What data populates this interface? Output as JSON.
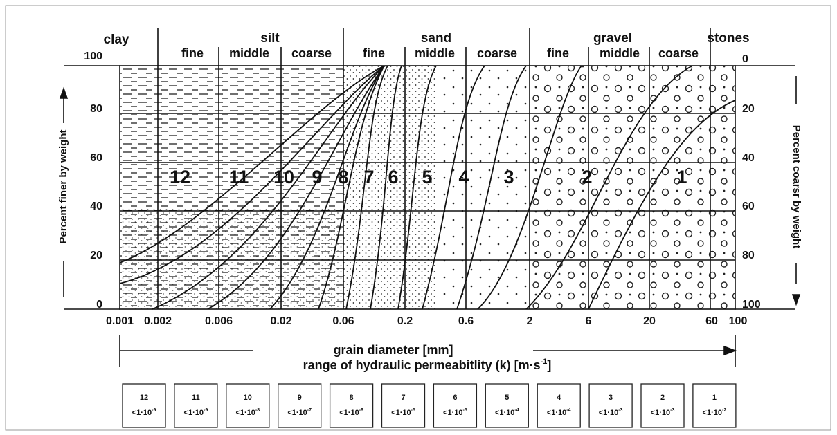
{
  "groups": [
    {
      "label": "clay",
      "x": 168
    },
    {
      "label": "silt",
      "x": 390
    },
    {
      "label": "sand",
      "x": 630
    },
    {
      "label": "gravel",
      "x": 885
    },
    {
      "label": "stones",
      "x": 1052
    }
  ],
  "subgroups": [
    "fine",
    "middle",
    "coarse",
    "fine",
    "middle",
    "coarse",
    "fine",
    "middle",
    "coarse"
  ],
  "left_ticks": [
    "100",
    "80",
    "60",
    "40",
    "20",
    "0"
  ],
  "right_ticks": [
    "0",
    "20",
    "40",
    "60",
    "80",
    "100"
  ],
  "left_axis": "Percent finer by weight",
  "right_axis": "Percent coarsr by weight",
  "x_ticks": [
    "0.001",
    "0.002",
    "0.006",
    "0.02",
    "0.06",
    "0.2",
    "0.6",
    "2",
    "6",
    "20",
    "60",
    "100"
  ],
  "zones": [
    "12",
    "11",
    "10",
    "9",
    "8",
    "7",
    "6",
    "5",
    "4",
    "3",
    "2",
    "1"
  ],
  "x_title": "grain diameter [mm]",
  "k_title": {
    "text": "range of hydraulic permeabitlity (k) [m·s",
    "sup": "-1",
    "end": "]"
  },
  "boxes": [
    {
      "zone": "12",
      "k": "<1·10",
      "exp": "-9"
    },
    {
      "zone": "11",
      "k": "<1·10",
      "exp": "-9"
    },
    {
      "zone": "10",
      "k": "<1·10",
      "exp": "-8"
    },
    {
      "zone": "9",
      "k": "<1·10",
      "exp": "-7"
    },
    {
      "zone": "8",
      "k": "<1·10",
      "exp": "-6"
    },
    {
      "zone": "7",
      "k": "<1·10",
      "exp": "-5"
    },
    {
      "zone": "6",
      "k": "<1·10",
      "exp": "-5"
    },
    {
      "zone": "5",
      "k": "<1·10",
      "exp": "-4"
    },
    {
      "zone": "4",
      "k": "<1·10",
      "exp": "-4"
    },
    {
      "zone": "3",
      "k": "<1·10",
      "exp": "-3"
    },
    {
      "zone": "2",
      "k": "<1·10",
      "exp": "-3"
    },
    {
      "zone": "1",
      "k": "<1·10",
      "exp": "-2"
    }
  ]
}
